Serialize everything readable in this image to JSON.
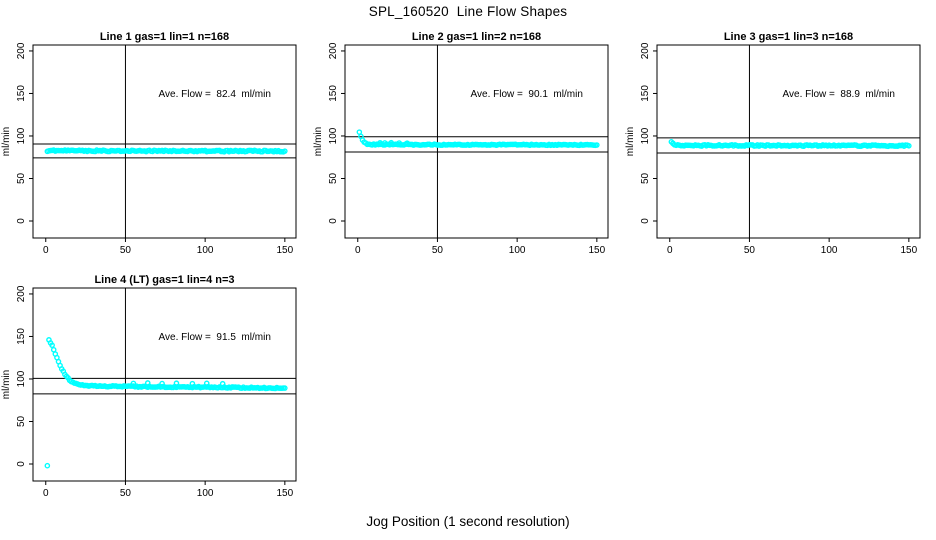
{
  "figure": {
    "title": "SPL_160520  Line Flow Shapes",
    "xlabel": "Jog Position (1 second resolution)",
    "background_color": "#ffffff",
    "axis_color": "#000000",
    "text_color": "#000000",
    "point_color": "#00ffff"
  },
  "chart_data": [
    {
      "type": "scatter",
      "title": "Line 1 gas=1 lin=1 n=168",
      "gas": 1,
      "lin": 1,
      "n": 168,
      "annotation": "Ave. Flow =  82.4  ml/min",
      "ave_flow_ml_min": 82.4,
      "ylabel": "ml/min",
      "xlim": [
        -8,
        157
      ],
      "ylim": [
        -20,
        207
      ],
      "xticks": [
        0,
        50,
        100,
        150
      ],
      "yticks": [
        0,
        50,
        100,
        150,
        200
      ],
      "grid": false,
      "legend": false,
      "vline_x": 50,
      "hlines": [
        90.6,
        74.2
      ],
      "series": [
        {
          "name": "flow",
          "x_start": 1,
          "x_end": 150,
          "profile": [
            [
              1,
              82.6
            ],
            [
              150,
              82.2
            ]
          ],
          "noise": 0.9,
          "extra_points": []
        }
      ]
    },
    {
      "type": "scatter",
      "title": "Line 2 gas=1 lin=2 n=168",
      "gas": 1,
      "lin": 2,
      "n": 168,
      "annotation": "Ave. Flow =  90.1  ml/min",
      "ave_flow_ml_min": 90.1,
      "ylabel": "ml/min",
      "xlim": [
        -8,
        157
      ],
      "ylim": [
        -20,
        207
      ],
      "xticks": [
        0,
        50,
        100,
        150
      ],
      "yticks": [
        0,
        50,
        100,
        150,
        200
      ],
      "grid": false,
      "legend": false,
      "vline_x": 50,
      "hlines": [
        99.1,
        81.1
      ],
      "series": [
        {
          "name": "flow",
          "x_start": 1,
          "x_end": 150,
          "profile": [
            [
              1,
              104
            ],
            [
              2,
              99
            ],
            [
              3,
              95
            ],
            [
              4,
              92.5
            ],
            [
              5,
              91.2
            ],
            [
              6,
              90.6
            ],
            [
              8,
              90.1
            ],
            [
              12,
              89.9
            ],
            [
              150,
              89.5
            ]
          ],
          "noise": 0.6,
          "extra_points": [
            [
              14,
              92.0
            ],
            [
              17,
              91.8
            ],
            [
              21,
              92.1
            ],
            [
              26,
              91.7
            ],
            [
              31,
              91.6
            ]
          ]
        }
      ]
    },
    {
      "type": "scatter",
      "title": "Line 3 gas=1 lin=3 n=168",
      "gas": 1,
      "lin": 3,
      "n": 168,
      "annotation": "Ave. Flow =  88.9  ml/min",
      "ave_flow_ml_min": 88.9,
      "ylabel": "ml/min",
      "xlim": [
        -8,
        157
      ],
      "ylim": [
        -20,
        207
      ],
      "xticks": [
        0,
        50,
        100,
        150
      ],
      "yticks": [
        0,
        50,
        100,
        150,
        200
      ],
      "grid": false,
      "legend": false,
      "vline_x": 50,
      "hlines": [
        97.8,
        80.0
      ],
      "series": [
        {
          "name": "flow",
          "x_start": 1,
          "x_end": 150,
          "profile": [
            [
              1,
              92.5
            ],
            [
              2,
              90.5
            ],
            [
              4,
              89.2
            ],
            [
              8,
              88.9
            ],
            [
              150,
              88.6
            ]
          ],
          "noise": 0.8,
          "extra_points": [
            [
              2,
              91.5
            ]
          ]
        }
      ]
    },
    {
      "type": "scatter",
      "title": "Line 4 (LT) gas=1 lin=4 n=3",
      "gas": 1,
      "lin": 4,
      "n": 3,
      "annotation": "Ave. Flow =  91.5  ml/min",
      "ave_flow_ml_min": 91.5,
      "ylabel": "ml/min",
      "xlim": [
        -8,
        157
      ],
      "ylim": [
        -20,
        207
      ],
      "xticks": [
        0,
        50,
        100,
        150
      ],
      "yticks": [
        0,
        50,
        100,
        150,
        200
      ],
      "grid": false,
      "legend": false,
      "vline_x": 50,
      "hlines": [
        100.7,
        82.4
      ],
      "series": [
        {
          "name": "flow",
          "x_start": 2,
          "x_end": 150,
          "profile": [
            [
              2,
              146
            ],
            [
              3,
              143
            ],
            [
              4,
              139
            ],
            [
              5,
              134.5
            ],
            [
              6,
              130
            ],
            [
              7,
              125.5
            ],
            [
              8,
              121
            ],
            [
              9,
              116.5
            ],
            [
              10,
              112.5
            ],
            [
              11,
              108.5
            ],
            [
              12,
              105.5
            ],
            [
              13,
              103
            ],
            [
              14,
              100.8
            ],
            [
              15,
              99
            ],
            [
              16,
              97.3
            ],
            [
              17,
              96
            ],
            [
              18,
              95
            ],
            [
              19,
              94.2
            ],
            [
              20,
              93.5
            ],
            [
              22,
              92.7
            ],
            [
              25,
              92.2
            ],
            [
              30,
              91.8
            ],
            [
              40,
              91.4
            ],
            [
              60,
              91.0
            ],
            [
              80,
              90.6
            ],
            [
              100,
              90.3
            ],
            [
              120,
              89.9
            ],
            [
              150,
              89.2
            ]
          ],
          "noise": 0.7,
          "extra_points": [
            [
              1,
              -2
            ],
            [
              55,
              94.8
            ],
            [
              64,
              95.3
            ],
            [
              73,
              94.6
            ],
            [
              82,
              95.0
            ],
            [
              92,
              94.5
            ],
            [
              101,
              94.9
            ],
            [
              111,
              94.4
            ]
          ]
        }
      ]
    }
  ]
}
